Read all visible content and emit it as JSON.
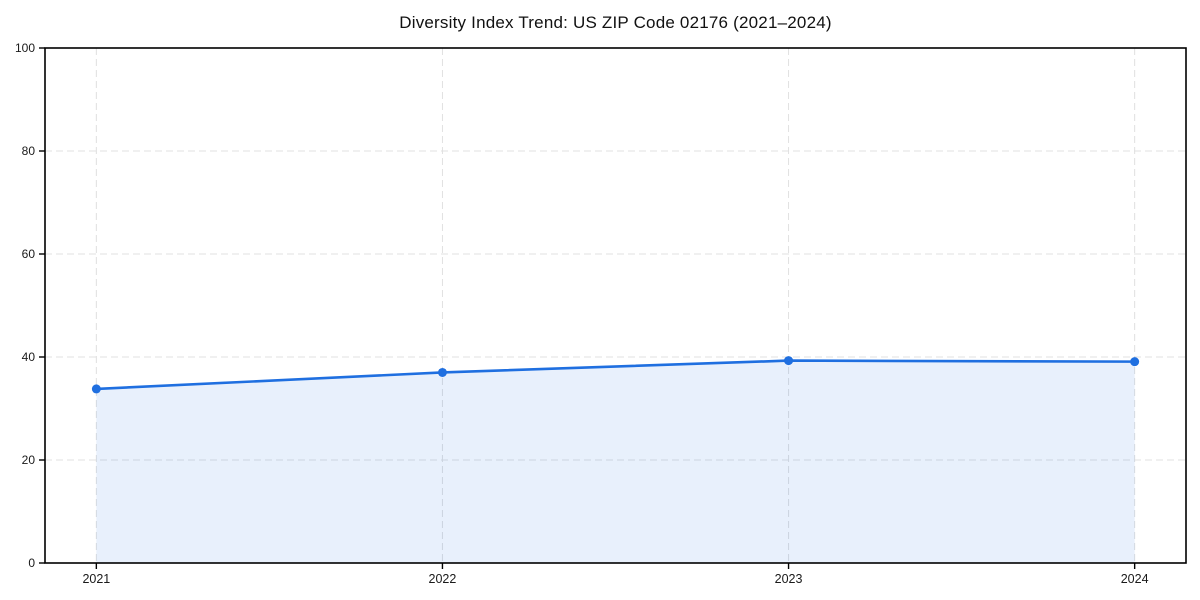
{
  "figure": {
    "background": "#ffffff"
  },
  "chart_data": {
    "type": "area",
    "title": "Diversity Index Trend: US ZIP Code 02176 (2021–2024)",
    "categories": [
      "2021",
      "2022",
      "2023",
      "2024"
    ],
    "values": [
      33.8,
      37.0,
      39.3,
      39.1
    ],
    "xlabel": "",
    "ylabel": "",
    "ylim": [
      0,
      100
    ],
    "yticks": [
      0,
      20,
      40,
      60,
      80,
      100
    ],
    "grid": "dashed-both-axes",
    "legend": "none",
    "marker": "circle",
    "colors": {
      "line": "#1f6fe0",
      "marker": "#1f6fe0",
      "fill": "#1f6fe0",
      "fill_opacity": 0.1,
      "grid": "#e0e0e0",
      "spine": "#000000",
      "text": "#1a1a1a",
      "background": "#ffffff"
    }
  }
}
